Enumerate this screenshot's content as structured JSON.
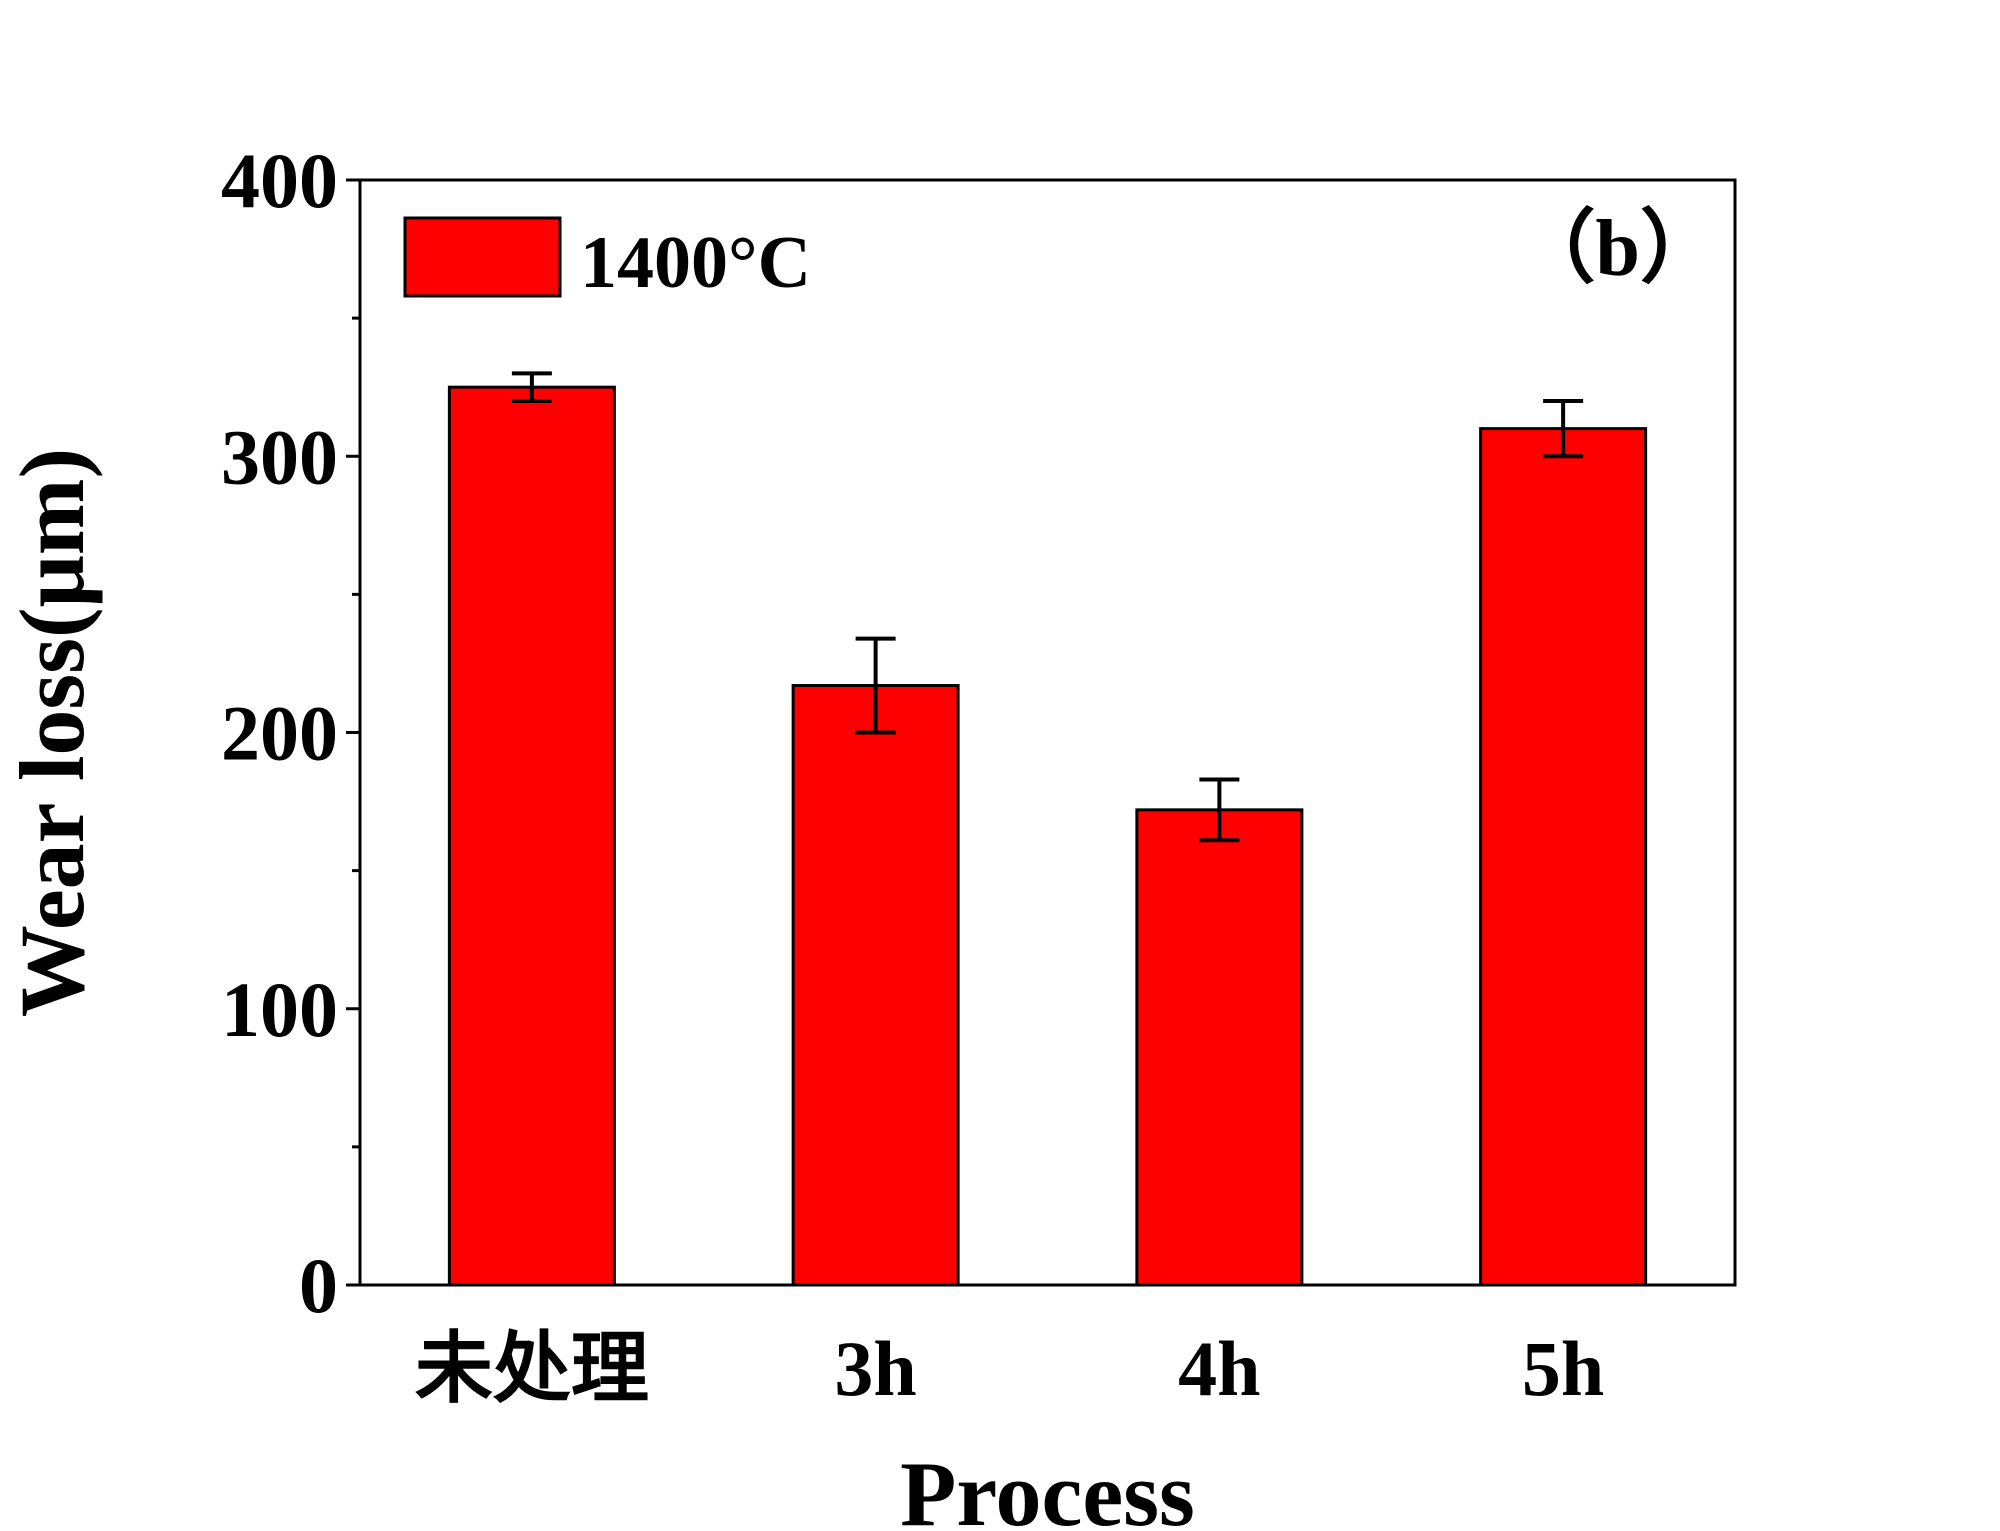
{
  "chart_data": {
    "type": "bar",
    "categories": [
      "未处理",
      "3h",
      "4h",
      "5h"
    ],
    "series": [
      {
        "name": "1400°C",
        "values": [
          325,
          217,
          172,
          310
        ],
        "errors": [
          5,
          17,
          11,
          10
        ],
        "color": "#ff0000"
      }
    ],
    "xlabel": "Process",
    "ylabel": "Wear loss(μm)",
    "ylim": [
      0,
      400
    ],
    "yticks": [
      0,
      100,
      200,
      300,
      400
    ],
    "panel_label": "（b）",
    "legend_position": "top-left",
    "grid": false
  }
}
